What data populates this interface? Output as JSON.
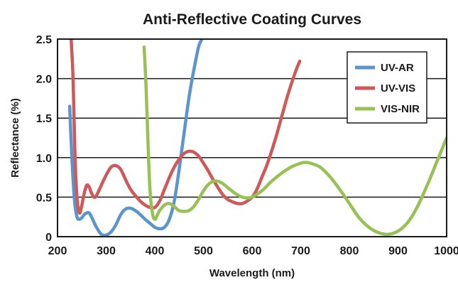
{
  "chart_data": {
    "type": "line",
    "title": "Anti-Reflective Coating Curves",
    "xlabel": "Wavelength (nm)",
    "ylabel": "Reflectance (%)",
    "xlim": [
      200,
      1000
    ],
    "ylim": [
      0,
      2.5
    ],
    "xticks": [
      "200",
      "300",
      "400",
      "500",
      "600",
      "700",
      "800",
      "900",
      "1000"
    ],
    "yticks": [
      "0",
      "0.5",
      "1.0",
      "1.5",
      "2.0",
      "2.5"
    ],
    "grid": "horizontal",
    "legend_position": "top-right",
    "series": [
      {
        "name": "UV-AR",
        "color": "#5b95d0",
        "x": [
          225,
          230,
          235,
          240,
          245,
          250,
          255,
          260,
          265,
          270,
          280,
          290,
          300,
          310,
          320,
          330,
          340,
          350,
          360,
          370,
          380,
          390,
          400,
          410,
          420,
          430,
          440,
          450,
          460,
          470,
          480,
          490,
          497
        ],
        "y": [
          1.65,
          0.95,
          0.45,
          0.25,
          0.22,
          0.24,
          0.28,
          0.3,
          0.3,
          0.25,
          0.12,
          0.03,
          0.02,
          0.06,
          0.15,
          0.28,
          0.35,
          0.36,
          0.33,
          0.28,
          0.22,
          0.17,
          0.12,
          0.1,
          0.12,
          0.22,
          0.45,
          0.85,
          1.3,
          1.75,
          2.1,
          2.4,
          2.5
        ]
      },
      {
        "name": "UV-VIS",
        "color": "#d05858",
        "x": [
          228,
          232,
          236,
          240,
          245,
          250,
          255,
          260,
          265,
          270,
          275,
          280,
          290,
          300,
          310,
          320,
          330,
          340,
          350,
          360,
          370,
          380,
          390,
          400,
          410,
          420,
          430,
          440,
          450,
          460,
          470,
          480,
          490,
          500,
          510,
          520,
          530,
          540,
          550,
          560,
          570,
          580,
          590,
          600,
          610,
          620,
          630,
          640,
          650,
          660,
          670,
          680,
          690,
          698
        ],
        "y": [
          2.5,
          2.0,
          1.0,
          0.5,
          0.3,
          0.4,
          0.55,
          0.65,
          0.63,
          0.55,
          0.5,
          0.52,
          0.65,
          0.78,
          0.88,
          0.9,
          0.85,
          0.72,
          0.6,
          0.52,
          0.45,
          0.4,
          0.37,
          0.37,
          0.45,
          0.6,
          0.75,
          0.88,
          0.98,
          1.05,
          1.08,
          1.07,
          1.02,
          0.93,
          0.83,
          0.72,
          0.62,
          0.53,
          0.47,
          0.44,
          0.42,
          0.42,
          0.45,
          0.5,
          0.6,
          0.75,
          0.9,
          1.08,
          1.28,
          1.5,
          1.72,
          1.92,
          2.1,
          2.22
        ]
      },
      {
        "name": "VIS-NIR",
        "color": "#98c154",
        "x": [
          378,
          382,
          386,
          390,
          395,
          400,
          405,
          410,
          420,
          430,
          440,
          450,
          460,
          470,
          480,
          490,
          500,
          510,
          520,
          530,
          540,
          550,
          560,
          570,
          580,
          590,
          600,
          620,
          640,
          660,
          680,
          700,
          710,
          720,
          740,
          760,
          780,
          800,
          820,
          840,
          860,
          880,
          900,
          920,
          940,
          960,
          980,
          1000
        ],
        "y": [
          2.4,
          1.9,
          1.2,
          0.6,
          0.3,
          0.22,
          0.27,
          0.33,
          0.4,
          0.42,
          0.38,
          0.33,
          0.32,
          0.33,
          0.38,
          0.47,
          0.58,
          0.66,
          0.7,
          0.7,
          0.67,
          0.62,
          0.57,
          0.53,
          0.5,
          0.49,
          0.5,
          0.58,
          0.7,
          0.8,
          0.88,
          0.93,
          0.94,
          0.93,
          0.88,
          0.76,
          0.6,
          0.42,
          0.24,
          0.12,
          0.05,
          0.03,
          0.07,
          0.18,
          0.38,
          0.65,
          0.95,
          1.25
        ]
      }
    ]
  }
}
